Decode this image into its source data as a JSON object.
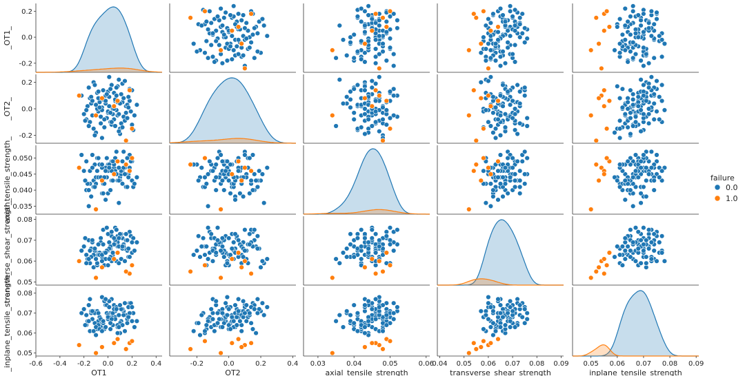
{
  "chart_data": {
    "type": "scatter",
    "title": "",
    "variables": [
      {
        "key": "OT1",
        "label": "_OT1_",
        "xlabel": "OT1",
        "range": [
          -0.6,
          0.45
        ],
        "xticks": [
          -0.6,
          -0.4,
          -0.2,
          0.0,
          0.2,
          0.4
        ],
        "xtick_labels": [
          "-0.6",
          "-0.4",
          "-0.2",
          "0.0",
          "0.2",
          "0.4"
        ],
        "yrange": [
          -0.27,
          0.26
        ],
        "yticks": [
          -0.2,
          0.0,
          0.2
        ],
        "ytick_labels": [
          "-0.2",
          "0.0",
          "0.2"
        ]
      },
      {
        "key": "OT2",
        "label": "_OT2_",
        "xlabel": "OT2",
        "range": [
          -0.37,
          0.42
        ],
        "xticks": [
          -0.2,
          0.0,
          0.2,
          0.4
        ],
        "xtick_labels": [
          "-0.2",
          "0.0",
          "0.2",
          "0.4"
        ],
        "yrange": [
          -0.26,
          0.26
        ],
        "yticks": [
          -0.2,
          0.0,
          0.2
        ],
        "ytick_labels": [
          "-0.2",
          "0.0",
          "0.2"
        ]
      },
      {
        "key": "axial",
        "label": "axial_tensile_strength_",
        "xlabel": "axial_tensile_strength",
        "range": [
          0.026,
          0.061
        ],
        "xticks": [
          0.03,
          0.04,
          0.05,
          0.06
        ],
        "xtick_labels": [
          "0.03",
          "0.04",
          "0.05",
          "0.06"
        ],
        "yrange": [
          0.0325,
          0.054
        ],
        "yticks": [
          0.035,
          0.04,
          0.045,
          0.05
        ],
        "ytick_labels": [
          "0.035",
          "0.040",
          "0.045",
          "0.050"
        ]
      },
      {
        "key": "shear",
        "label": "transverse_shear_strength_",
        "xlabel": "transverse_shear_strength",
        "range": [
          0.039,
          0.091
        ],
        "xticks": [
          0.04,
          0.05,
          0.06,
          0.07,
          0.08,
          0.09
        ],
        "xtick_labels": [
          "0.04",
          "0.05",
          "0.06",
          "0.07",
          "0.08",
          "0.09"
        ],
        "yrange": [
          0.0485,
          0.0815
        ],
        "yticks": [
          0.05,
          0.06,
          0.07,
          0.08
        ],
        "ytick_labels": [
          "0.05",
          "0.06",
          "0.07",
          "0.08"
        ]
      },
      {
        "key": "inplane",
        "label": "_inplane_tensile_strength_",
        "xlabel": "inplane_tensile_strength",
        "range": [
          0.043,
          0.091
        ],
        "xticks": [
          0.05,
          0.06,
          0.07,
          0.08,
          0.09
        ],
        "xtick_labels": [
          "0.05",
          "0.06",
          "0.07",
          "0.08",
          "0.09"
        ],
        "yrange": [
          0.0485,
          0.083
        ],
        "yticks": [
          0.05,
          0.06,
          0.07,
          0.08
        ],
        "ytick_labels": [
          "0.05",
          "0.06",
          "0.07",
          "0.08"
        ]
      }
    ],
    "legend": {
      "title": "failure",
      "entries": [
        {
          "label": "0.0",
          "color": "#1f77b4"
        },
        {
          "label": "1.0",
          "color": "#ff7f0e"
        }
      ],
      "position": "right"
    },
    "series": [
      {
        "name": "0.0",
        "color": "#1f77b4",
        "points": [
          [
            0.05,
            0.12,
            0.047,
            0.068,
            0.068
          ],
          [
            -0.08,
            -0.02,
            0.044,
            0.064,
            0.066
          ],
          [
            0.12,
            0.05,
            0.049,
            0.071,
            0.072
          ],
          [
            -0.15,
            0.08,
            0.042,
            0.059,
            0.061
          ],
          [
            0.02,
            -0.1,
            0.046,
            0.066,
            0.07
          ],
          [
            0.18,
            0.15,
            0.051,
            0.074,
            0.075
          ],
          [
            -0.05,
            0.01,
            0.039,
            0.062,
            0.065
          ],
          [
            0.08,
            -0.05,
            0.045,
            0.069,
            0.063
          ],
          [
            -0.12,
            0.2,
            0.043,
            0.057,
            0.071
          ],
          [
            0.0,
            -0.03,
            0.048,
            0.065,
            0.067
          ],
          [
            0.15,
            0.02,
            0.041,
            0.073,
            0.069
          ],
          [
            -0.02,
            0.1,
            0.047,
            0.061,
            0.074
          ],
          [
            0.1,
            -0.15,
            0.044,
            0.067,
            0.06
          ],
          [
            -0.18,
            -0.08,
            0.04,
            0.063,
            0.064
          ],
          [
            0.06,
            0.06,
            0.05,
            0.07,
            0.068
          ],
          [
            -0.09,
            0.0,
            0.046,
            0.058,
            0.062
          ],
          [
            0.03,
            0.18,
            0.043,
            0.072,
            0.077
          ],
          [
            0.2,
            -0.12,
            0.049,
            0.064,
            0.066
          ],
          [
            -0.14,
            0.04,
            0.038,
            0.066,
            0.07
          ],
          [
            0.07,
            -0.01,
            0.045,
            0.06,
            0.073
          ],
          [
            -0.04,
            0.14,
            0.042,
            0.075,
            0.065
          ],
          [
            0.13,
            -0.06,
            0.052,
            0.068,
            0.071
          ],
          [
            -0.1,
            -0.18,
            0.044,
            0.062,
            0.059
          ],
          [
            0.01,
            0.09,
            0.047,
            0.069,
            0.076
          ],
          [
            0.16,
            0.03,
            0.041,
            0.065,
            0.067
          ],
          [
            -0.06,
            -0.11,
            0.048,
            0.071,
            0.063
          ],
          [
            0.09,
            0.22,
            0.036,
            0.059,
            0.069
          ],
          [
            -0.2,
            -0.04,
            0.046,
            0.067,
            0.072
          ],
          [
            0.04,
            0.0,
            0.043,
            0.063,
            0.064
          ],
          [
            -0.01,
            -0.07,
            0.05,
            0.076,
            0.07
          ],
          [
            0.11,
            0.11,
            0.045,
            0.061,
            0.066
          ],
          [
            -0.16,
            0.16,
            0.04,
            0.07,
            0.074
          ],
          [
            0.14,
            -0.09,
            0.047,
            0.066,
            0.061
          ],
          [
            -0.07,
            0.05,
            0.044,
            0.064,
            0.068
          ],
          [
            0.19,
            -0.02,
            0.049,
            0.072,
            0.075
          ],
          [
            -0.03,
            -0.14,
            0.042,
            0.058,
            0.062
          ],
          [
            0.06,
            0.07,
            0.046,
            0.068,
            0.071
          ],
          [
            -0.11,
            -0.2,
            0.048,
            0.065,
            0.065
          ],
          [
            0.0,
            0.13,
            0.039,
            0.073,
            0.069
          ],
          [
            0.17,
            0.01,
            0.045,
            0.062,
            0.073
          ],
          [
            -0.13,
            -0.05,
            0.051,
            0.069,
            0.067
          ],
          [
            0.08,
            0.17,
            0.043,
            0.067,
            0.06
          ],
          [
            -0.05,
            -0.01,
            0.047,
            0.06,
            0.078
          ],
          [
            0.21,
            -0.16,
            0.041,
            0.071,
            0.07
          ],
          [
            -0.08,
            0.08,
            0.044,
            0.063,
            0.064
          ],
          [
            0.03,
            -0.12,
            0.049,
            0.074,
            0.068
          ],
          [
            0.12,
            0.19,
            0.046,
            0.066,
            0.072
          ],
          [
            -0.17,
            0.02,
            0.042,
            0.061,
            0.066
          ],
          [
            0.05,
            -0.08,
            0.048,
            0.068,
            0.074
          ],
          [
            -0.02,
            0.04,
            0.037,
            0.064,
            0.063
          ],
          [
            0.15,
            -0.03,
            0.045,
            0.07,
            0.069
          ],
          [
            -0.09,
            0.12,
            0.05,
            0.059,
            0.071
          ],
          [
            0.1,
            -0.19,
            0.043,
            0.072,
            0.065
          ],
          [
            -0.15,
            -0.1,
            0.046,
            0.065,
            0.077
          ],
          [
            0.02,
            0.15,
            0.04,
            0.067,
            0.062
          ],
          [
            0.18,
            0.06,
            0.047,
            0.062,
            0.07
          ],
          [
            -0.06,
            -0.06,
            0.044,
            0.069,
            0.067
          ],
          [
            0.07,
            0.1,
            0.052,
            0.075,
            0.073
          ],
          [
            -0.12,
            -0.15,
            0.041,
            0.063,
            0.061
          ],
          [
            0.01,
            0.02,
            0.048,
            0.066,
            0.068
          ],
          [
            0.14,
            0.21,
            0.045,
            0.06,
            0.075
          ],
          [
            -0.19,
            -0.09,
            0.043,
            0.071,
            0.064
          ],
          [
            0.04,
            -0.04,
            0.049,
            0.064,
            0.07
          ],
          [
            -0.04,
            0.07,
            0.039,
            0.068,
            0.066
          ],
          [
            0.11,
            -0.11,
            0.046,
            0.073,
            0.072
          ],
          [
            -0.1,
            0.03,
            0.042,
            0.061,
            0.063
          ],
          [
            0.09,
            -0.17,
            0.047,
            0.067,
            0.069
          ],
          [
            -0.01,
            0.11,
            0.044,
            0.065,
            0.074
          ],
          [
            0.16,
            -0.07,
            0.05,
            0.07,
            0.065
          ],
          [
            -0.14,
            0.09,
            0.038,
            0.062,
            0.071
          ],
          [
            0.06,
            -0.13,
            0.045,
            0.076,
            0.067
          ],
          [
            -0.07,
            0.01,
            0.048,
            0.063,
            0.062
          ],
          [
            0.2,
            0.14,
            0.043,
            0.069,
            0.073
          ],
          [
            0.0,
            -0.02,
            0.046,
            0.058,
            0.068
          ],
          [
            -0.11,
            0.18,
            0.041,
            0.066,
            0.07
          ],
          [
            0.08,
            0.05,
            0.049,
            0.072,
            0.064
          ],
          [
            -0.03,
            -0.08,
            0.044,
            0.064,
            0.076
          ],
          [
            0.13,
            0.08,
            0.047,
            0.067,
            0.069
          ],
          [
            -0.16,
            -0.13,
            0.035,
            0.061,
            0.066
          ],
          [
            0.05,
            0.0,
            0.045,
            0.071,
            0.072
          ],
          [
            0.22,
            -0.05,
            0.042,
            0.065,
            0.063
          ],
          [
            -0.08,
            0.13,
            0.05,
            0.068,
            0.07
          ],
          [
            0.03,
            -0.1,
            0.046,
            0.06,
            0.067
          ],
          [
            0.1,
            0.04,
            0.043,
            0.073,
            0.074
          ],
          [
            -0.05,
            -0.22,
            0.048,
            0.063,
            0.061
          ],
          [
            0.17,
            0.09,
            0.044,
            0.066,
            0.068
          ],
          [
            -0.13,
            0.06,
            0.047,
            0.07,
            0.071
          ],
          [
            0.02,
            -0.03,
            0.04,
            0.062,
            0.065
          ],
          [
            0.07,
            0.16,
            0.045,
            0.075,
            0.072
          ],
          [
            -0.18,
            -0.01,
            0.049,
            0.059,
            0.069
          ],
          [
            0.12,
            -0.14,
            0.042,
            0.067,
            0.064
          ],
          [
            -0.02,
            0.06,
            0.046,
            0.064,
            0.077
          ],
          [
            0.24,
            0.03,
            0.044,
            0.069,
            0.066
          ],
          [
            -0.22,
            0.1,
            0.051,
            0.065,
            0.07
          ],
          [
            0.09,
            -0.04,
            0.043,
            0.071,
            0.063
          ],
          [
            0.01,
            0.24,
            0.047,
            0.061,
            0.073
          ]
        ]
      },
      {
        "name": "1.0",
        "color": "#ff7f0e",
        "points": [
          [
            -0.24,
            0.1,
            0.047,
            0.06,
            0.054
          ],
          [
            0.18,
            0.14,
            0.046,
            0.054,
            0.055
          ],
          [
            -0.1,
            -0.05,
            0.034,
            0.052,
            0.05
          ],
          [
            0.08,
            0.06,
            0.049,
            0.064,
            0.057
          ],
          [
            0.15,
            -0.24,
            0.048,
            0.055,
            0.052
          ],
          [
            -0.05,
            0.08,
            0.043,
            0.057,
            0.053
          ],
          [
            0.05,
            0.02,
            0.045,
            0.061,
            0.055
          ],
          [
            0.2,
            -0.15,
            0.05,
            0.058,
            0.056
          ]
        ]
      }
    ]
  }
}
